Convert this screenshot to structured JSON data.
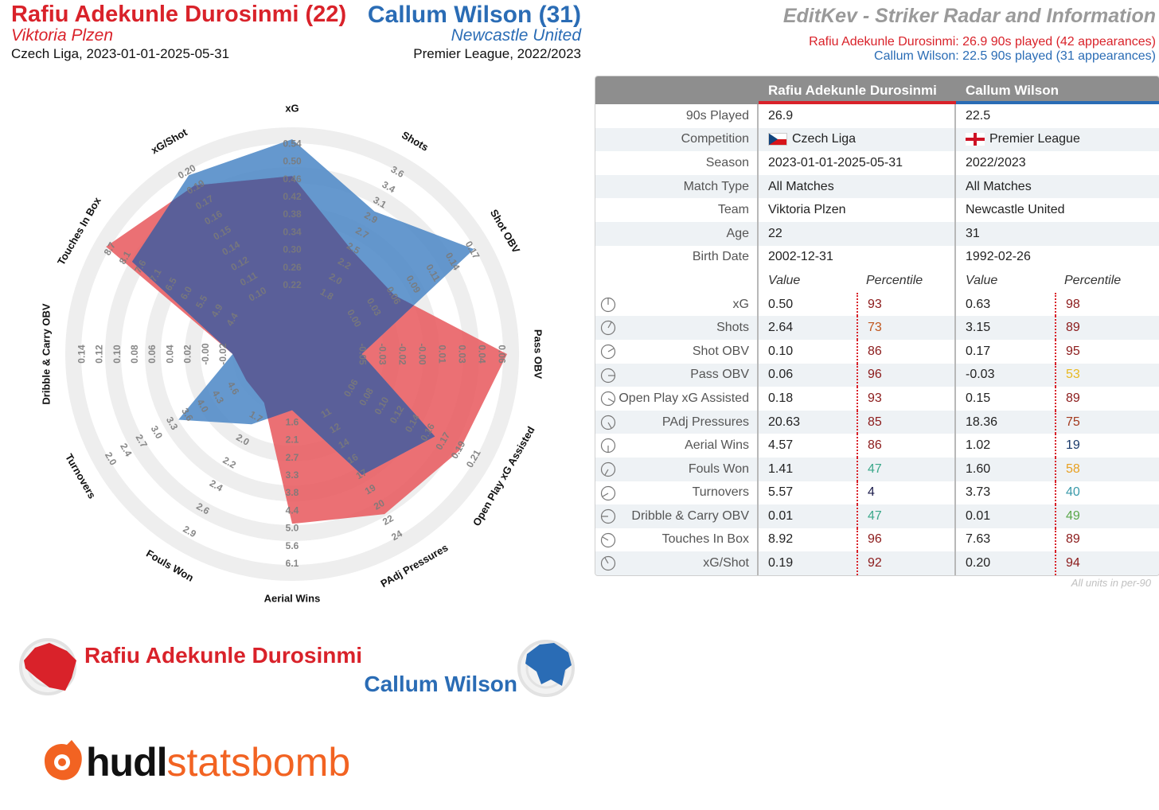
{
  "header": {
    "p1_name": "Rafiu Adekunle Durosinmi (22)",
    "p1_team": "Viktoria Plzen",
    "p1_comp": "Czech Liga, 2023-01-01-2025-05-31",
    "p2_name": "Callum Wilson (31)",
    "p2_team": "Newcastle United",
    "p2_comp": "Premier League, 2022/2023",
    "title": "EditKev - Striker Radar and Information",
    "info1": "Rafiu Adekunle Durosinmi: 26.9 90s played (42 appearances)",
    "info2": "Callum Wilson: 22.5 90s played (31 appearances)"
  },
  "colors": {
    "p1": "#e8575c",
    "p2": "#4a86c5",
    "overlap": "#5a5f99",
    "ring": "#eeeeee"
  },
  "chart_data": {
    "type": "radar",
    "categories": [
      "xG",
      "Shots",
      "Shot OBV",
      "Pass OBV",
      "Open Play xG Assisted",
      "PAdj Pressures",
      "Aerial Wins",
      "Fouls Won",
      "Turnovers",
      "Dribble & Carry OBV",
      "Touches In Box",
      "xG/Shot"
    ],
    "ticks": [
      [
        "0.22",
        "0.26",
        "0.30",
        "0.34",
        "0.38",
        "0.42",
        "0.46",
        "0.50",
        "0.54"
      ],
      [
        "1.8",
        "2.0",
        "2.2",
        "2.5",
        "2.7",
        "2.9",
        "3.1",
        "3.4",
        "3.6"
      ],
      [
        "0.00",
        "0.03",
        "0.06",
        "0.09",
        "0.11",
        "0.14",
        "0.17"
      ],
      [
        "-0.05",
        "-0.03",
        "-0.02",
        "-0.00",
        "0.01",
        "0.03",
        "0.04",
        "0.06"
      ],
      [
        "0.06",
        "0.08",
        "0.10",
        "0.12",
        "0.14",
        "0.16",
        "0.17",
        "0.19",
        "0.21"
      ],
      [
        "11",
        "12",
        "14",
        "16",
        "17",
        "19",
        "20",
        "22",
        "24"
      ],
      [
        "1.6",
        "2.1",
        "2.7",
        "3.3",
        "3.8",
        "4.4",
        "5.0",
        "5.6",
        "6.1"
      ],
      [
        "1.7",
        "2.0",
        "2.2",
        "2.4",
        "2.6",
        "2.9"
      ],
      [
        "4.6",
        "4.3",
        "4.0",
        "3.6",
        "3.3",
        "3.0",
        "2.7",
        "2.4",
        "2.0"
      ],
      [
        "-0.02",
        "-0.00",
        "0.02",
        "0.04",
        "0.06",
        "0.08",
        "0.10",
        "0.12",
        "0.14"
      ],
      [
        "4.4",
        "4.9",
        "5.5",
        "6.0",
        "6.5",
        "7.1",
        "7.6",
        "8.1",
        "8.7"
      ],
      [
        "0.10",
        "0.11",
        "0.12",
        "0.14",
        "0.15",
        "0.16",
        "0.17",
        "0.19",
        "0.20"
      ]
    ],
    "series": [
      {
        "name": "Rafiu Adekunle Durosinmi",
        "values": [
          0.5,
          2.64,
          0.1,
          0.06,
          0.18,
          20.63,
          4.57,
          1.41,
          5.57,
          0.01,
          8.92,
          0.19
        ],
        "radial_fraction": [
          0.78,
          0.43,
          0.42,
          1.0,
          0.87,
          0.82,
          0.73,
          0.05,
          0.03,
          0.07,
          1.0,
          0.88
        ]
      },
      {
        "name": "Callum Wilson",
        "values": [
          0.63,
          3.15,
          0.17,
          -0.03,
          0.15,
          18.36,
          1.02,
          1.6,
          3.73,
          0.01,
          7.63,
          0.2
        ],
        "radial_fraction": [
          1.0,
          0.7,
          0.97,
          0.13,
          0.7,
          0.55,
          0.05,
          0.2,
          0.5,
          0.07,
          0.82,
          0.95
        ]
      }
    ]
  },
  "legend": {
    "p1": "Rafiu Adekunle Durosinmi",
    "p2": "Callum Wilson"
  },
  "logo": {
    "hudl": "hudl",
    "statsbomb": "statsbomb"
  },
  "table": {
    "h1": "Rafiu Adekunle Durosinmi",
    "h2": "Callum Wilson",
    "info": [
      {
        "label": "90s Played",
        "v1": "26.9",
        "v2": "22.5"
      },
      {
        "label": "Competition",
        "v1": "Czech Liga",
        "v2": "Premier League",
        "flag": true
      },
      {
        "label": "Season",
        "v1": "2023-01-01-2025-05-31",
        "v2": "2022/2023"
      },
      {
        "label": "Match Type",
        "v1": "All Matches",
        "v2": "All Matches"
      },
      {
        "label": "Team",
        "v1": "Viktoria Plzen",
        "v2": "Newcastle United"
      },
      {
        "label": "Age",
        "v1": "22",
        "v2": "31"
      },
      {
        "label": "Birth Date",
        "v1": "2002-12-31",
        "v2": "1992-02-26"
      }
    ],
    "sub": {
      "value": "Value",
      "percentile": "Percentile"
    },
    "stats": [
      {
        "label": "xG",
        "v1": "0.50",
        "p1": "93",
        "c1": "#8b1a1a",
        "v2": "0.63",
        "p2": "98",
        "c2": "#8b1a1a"
      },
      {
        "label": "Shots",
        "v1": "2.64",
        "p1": "73",
        "c1": "#c0561d",
        "v2": "3.15",
        "p2": "89",
        "c2": "#8b1a1a"
      },
      {
        "label": "Shot OBV",
        "v1": "0.10",
        "p1": "86",
        "c1": "#8b1a1a",
        "v2": "0.17",
        "p2": "95",
        "c2": "#8b1a1a"
      },
      {
        "label": "Pass OBV",
        "v1": "0.06",
        "p1": "96",
        "c1": "#8b1a1a",
        "v2": "-0.03",
        "p2": "53",
        "c2": "#e8b820"
      },
      {
        "label": "Open Play xG Assisted",
        "v1": "0.18",
        "p1": "93",
        "c1": "#8b1a1a",
        "v2": "0.15",
        "p2": "89",
        "c2": "#8b1a1a"
      },
      {
        "label": "PAdj Pressures",
        "v1": "20.63",
        "p1": "85",
        "c1": "#8b1a1a",
        "v2": "18.36",
        "p2": "75",
        "c2": "#a33a1e"
      },
      {
        "label": "Aerial Wins",
        "v1": "4.57",
        "p1": "86",
        "c1": "#8b1a1a",
        "v2": "1.02",
        "p2": "19",
        "c2": "#1a3a6b"
      },
      {
        "label": "Fouls Won",
        "v1": "1.41",
        "p1": "47",
        "c1": "#3aa88a",
        "v2": "1.60",
        "p2": "58",
        "c2": "#e8a020"
      },
      {
        "label": "Turnovers",
        "v1": "5.57",
        "p1": "4",
        "c1": "#1a1a4a",
        "v2": "3.73",
        "p2": "40",
        "c2": "#3a9aaa"
      },
      {
        "label": "Dribble & Carry OBV",
        "v1": "0.01",
        "p1": "47",
        "c1": "#3aa88a",
        "v2": "0.01",
        "p2": "49",
        "c2": "#5aa84a"
      },
      {
        "label": "Touches In Box",
        "v1": "8.92",
        "p1": "96",
        "c1": "#8b1a1a",
        "v2": "7.63",
        "p2": "89",
        "c2": "#8b1a1a"
      },
      {
        "label": "xG/Shot",
        "v1": "0.19",
        "p1": "92",
        "c1": "#8b1a1a",
        "v2": "0.20",
        "p2": "94",
        "c2": "#8b1a1a"
      }
    ],
    "footnote": "All units in per-90"
  }
}
